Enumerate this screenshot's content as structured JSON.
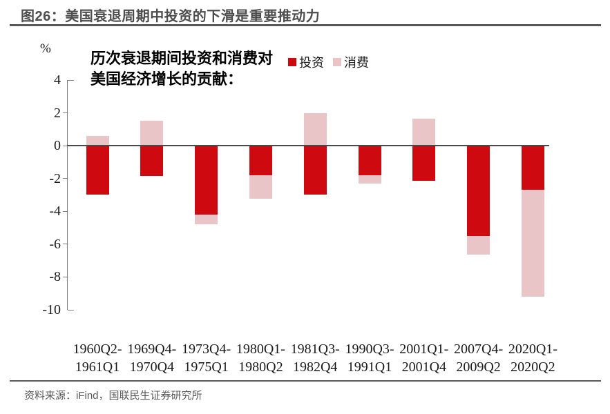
{
  "page": {
    "title": "图26：美国衰退周期中投资的下滑是重要推动力",
    "source_note": "资料来源：iFind，国联民生证券研究所"
  },
  "chart": {
    "unit_label": "%",
    "annotation_line1": "历次衰退期间投资和消费对",
    "annotation_line2": "美国经济增长的贡献："
  },
  "chart_data": {
    "type": "bar",
    "stacked": true,
    "title": "历次衰退期间投资和消费对美国经济增长的贡献",
    "ylabel": "%",
    "ylim": [
      -10,
      4
    ],
    "yticks": [
      4,
      2,
      0,
      -2,
      -4,
      -6,
      -8,
      -10
    ],
    "grid": false,
    "legend_position": "top",
    "categories": [
      "1960Q2-\n1961Q1",
      "1969Q4-\n1970Q4",
      "1973Q4-\n1975Q1",
      "1980Q1-\n1980Q2",
      "1981Q3-\n1982Q4",
      "1990Q3-\n1991Q1",
      "2001Q1-\n2001Q4",
      "2007Q4-\n2009Q2",
      "2020Q1-\n2020Q2"
    ],
    "series": [
      {
        "name": "投资",
        "color": "#CE090F",
        "values": [
          -3.0,
          -1.85,
          -4.2,
          -1.8,
          -3.0,
          -1.8,
          -2.15,
          -5.5,
          -2.7
        ]
      },
      {
        "name": "消费",
        "color": "#E9C5C7",
        "values": [
          0.6,
          1.5,
          -0.6,
          -1.45,
          2.0,
          -0.5,
          1.65,
          -1.15,
          -6.5
        ]
      }
    ],
    "colors": {
      "invest_red": "#CE090F",
      "consume_pink": "#E9C5C7",
      "axis_gray": "#7f7f7f",
      "zero_line": "#4a4a4a"
    }
  }
}
